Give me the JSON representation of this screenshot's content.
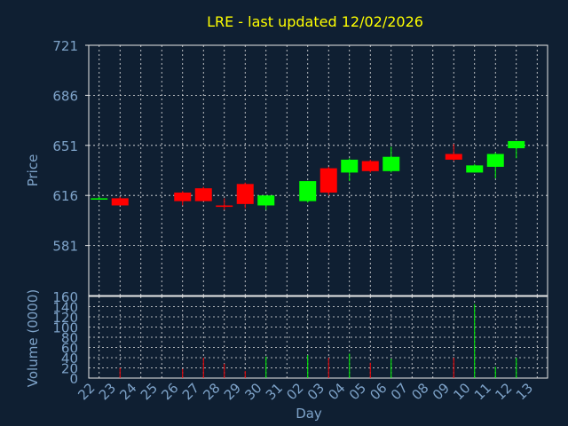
{
  "chart_data": {
    "type": "candlestick",
    "title": "LRE - last updated 12/02/2026",
    "xlabel": "Day",
    "price": {
      "ylabel": "Price",
      "ylim": [
        546,
        721
      ],
      "tick_values": [
        581,
        616,
        651,
        686,
        721
      ]
    },
    "volume": {
      "ylabel": "Volume (0000)",
      "ylim": [
        0,
        160
      ],
      "tick_values": [
        0,
        20,
        40,
        60,
        80,
        100,
        120,
        140,
        160
      ]
    },
    "x_tick_labels": [
      "22",
      "23",
      "24",
      "25",
      "26",
      "27",
      "28",
      "29",
      "30",
      "31",
      "02",
      "03",
      "04",
      "05",
      "06",
      "07",
      "08",
      "09",
      "10",
      "11",
      "12",
      "13"
    ],
    "candles": [
      {
        "day": "22",
        "open": 614,
        "high": 615,
        "low": 613,
        "close": 614,
        "volume": 0
      },
      {
        "day": "23",
        "open": 614,
        "high": 615,
        "low": 609,
        "close": 609,
        "volume": 20
      },
      {
        "day": "26",
        "open": 618,
        "high": 619,
        "low": 609,
        "close": 612,
        "volume": 18
      },
      {
        "day": "27",
        "open": 621,
        "high": 622,
        "low": 612,
        "close": 612,
        "volume": 40
      },
      {
        "day": "28",
        "open": 609,
        "high": 614,
        "low": 606,
        "close": 608,
        "volume": 28
      },
      {
        "day": "29",
        "open": 624,
        "high": 625,
        "low": 607,
        "close": 610,
        "volume": 14
      },
      {
        "day": "30",
        "open": 609,
        "high": 616,
        "low": 606,
        "close": 616,
        "volume": 42
      },
      {
        "day": "02",
        "open": 612,
        "high": 626,
        "low": 611,
        "close": 626,
        "volume": 45
      },
      {
        "day": "03",
        "open": 635,
        "high": 636,
        "low": 616,
        "close": 618,
        "volume": 40
      },
      {
        "day": "04",
        "open": 632,
        "high": 642,
        "low": 626,
        "close": 641,
        "volume": 48
      },
      {
        "day": "05",
        "open": 640,
        "high": 641,
        "low": 632,
        "close": 633,
        "volume": 30
      },
      {
        "day": "06",
        "open": 633,
        "high": 650,
        "low": 632,
        "close": 643,
        "volume": 38
      },
      {
        "day": "09",
        "open": 645,
        "high": 652,
        "low": 640,
        "close": 641,
        "volume": 40
      },
      {
        "day": "10",
        "open": 632,
        "high": 638,
        "low": 632,
        "close": 637,
        "volume": 145
      },
      {
        "day": "11",
        "open": 636,
        "high": 646,
        "low": 628,
        "close": 645,
        "volume": 22
      },
      {
        "day": "12",
        "open": 649,
        "high": 654,
        "low": 642,
        "close": 654,
        "volume": 40
      }
    ],
    "colors": {
      "background": "#0f1f32",
      "frame": "#e8e8e8",
      "grid": "#e8e8e8",
      "title": "#ffff00",
      "axis_text": "#7ea3c9",
      "up": "#00ff00",
      "down": "#ff0000"
    },
    "grid": true
  }
}
